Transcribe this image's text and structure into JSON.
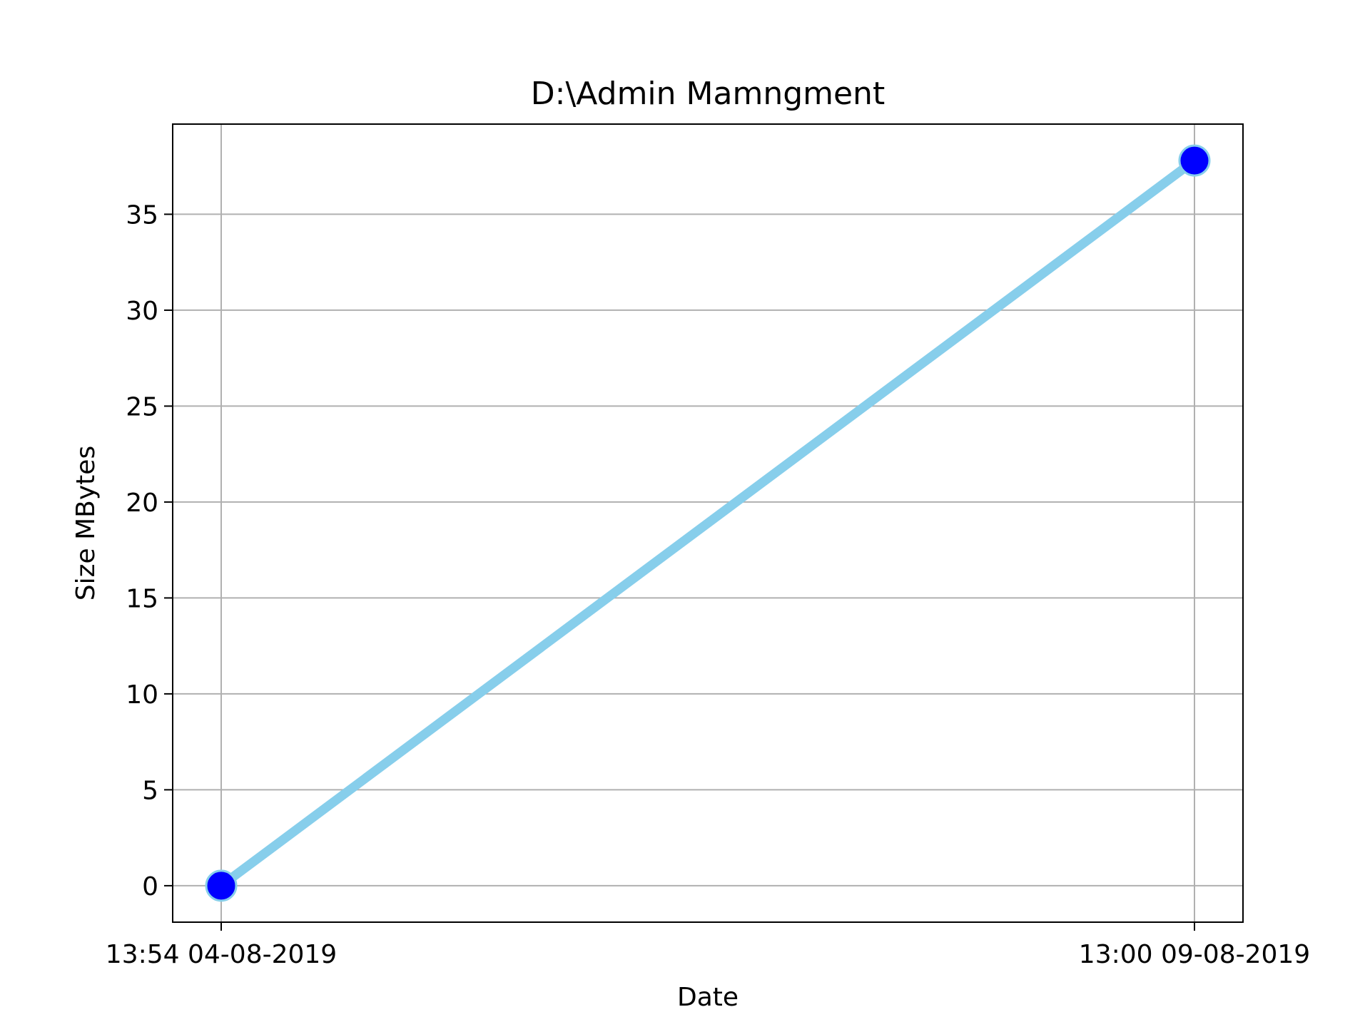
{
  "chart_data": {
    "type": "line",
    "title": "D:\\Admin Mamngment",
    "xlabel": "Date",
    "ylabel": "Size MBytes",
    "x_ticks": [
      "13:54 04-08-2019",
      "13:00 09-08-2019"
    ],
    "series": [
      {
        "x": [
          "13:54 04-08-2019",
          "13:00 09-08-2019"
        ],
        "y": [
          0,
          37.8
        ]
      }
    ],
    "yticks": [
      0,
      5,
      10,
      15,
      20,
      25,
      30,
      35
    ],
    "ylim": [
      -1.9,
      39.7
    ],
    "grid": true,
    "legend": "none",
    "colors": {
      "line": "#87ceeb",
      "marker_fill": "#0000ff",
      "marker_edge": "#87ceeb",
      "grid": "#b0b0b0",
      "axes": "#000000"
    }
  }
}
